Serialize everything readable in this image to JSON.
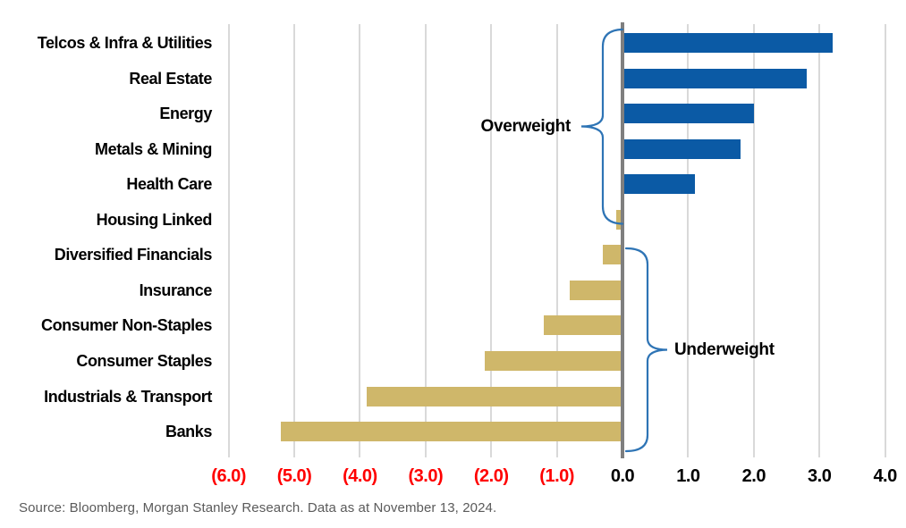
{
  "chart_data": {
    "type": "bar",
    "orientation": "horizontal",
    "title": "",
    "xlabel": "",
    "ylabel": "",
    "categories": [
      "Telcos & Infra & Utilities",
      "Real Estate",
      "Energy",
      "Metals & Mining",
      "Health Care",
      "Housing Linked",
      "Diversified Financials",
      "Insurance",
      "Consumer Non-Staples",
      "Consumer Staples",
      "Industrials & Transport",
      "Banks"
    ],
    "values": [
      3.2,
      2.8,
      2.0,
      1.8,
      1.1,
      -0.1,
      -0.3,
      -0.8,
      -1.2,
      -2.1,
      -3.9,
      -5.2
    ],
    "xlim": [
      -6.4,
      4.4
    ],
    "grid": true,
    "zero_line": true,
    "x_ticks": [
      {
        "value": -6,
        "label": "(6.0)",
        "negative": true
      },
      {
        "value": -5,
        "label": "(5.0)",
        "negative": true
      },
      {
        "value": -4,
        "label": "(4.0)",
        "negative": true
      },
      {
        "value": -3,
        "label": "(3.0)",
        "negative": true
      },
      {
        "value": -2,
        "label": "(2.0)",
        "negative": true
      },
      {
        "value": -1,
        "label": "(1.0)",
        "negative": true
      },
      {
        "value": 0,
        "label": "0.0",
        "negative": false
      },
      {
        "value": 1,
        "label": "1.0",
        "negative": false
      },
      {
        "value": 2,
        "label": "2.0",
        "negative": false
      },
      {
        "value": 3,
        "label": "3.0",
        "negative": false
      },
      {
        "value": 4,
        "label": "4.0",
        "negative": false
      }
    ],
    "annotations": [
      {
        "label": "Overweight",
        "rows_from": 0,
        "rows_to": 5,
        "brace_side": "left"
      },
      {
        "label": "Underweight",
        "rows_from": 6,
        "rows_to": 11,
        "brace_side": "right"
      }
    ]
  },
  "colors": {
    "positive_bar": "#0b5aa5",
    "negative_bar": "#cfb76a",
    "brace": "#2e74b5",
    "negative_tick_text": "#ff0000",
    "tick_text": "#000000",
    "gridline": "#d9d9d9",
    "zero_line": "#7f7f7f",
    "source_text": "#5a5a5a"
  },
  "source": {
    "text": "Source: Bloomberg, Morgan Stanley Research. Data as at November 13, 2024."
  }
}
